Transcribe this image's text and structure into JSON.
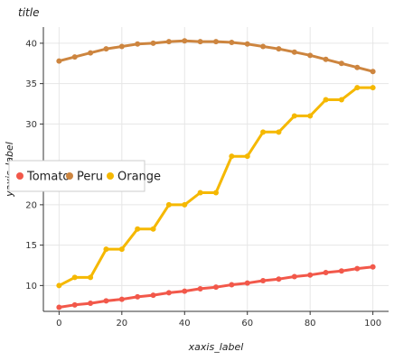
{
  "chart_data": {
    "type": "line",
    "title": "title",
    "xlabel": "xaxis_label",
    "ylabel": "yaxis_label",
    "xlim": [
      -5,
      105
    ],
    "ylim": [
      6.8,
      42.0
    ],
    "xticks": [
      0,
      20,
      40,
      60,
      80,
      100
    ],
    "yticks": [
      10,
      15,
      20,
      25,
      30,
      35,
      40
    ],
    "grid": true,
    "legend_position": "left",
    "markers": true,
    "series": [
      {
        "name": "Tomato",
        "color": "#f2584a",
        "x": [
          0,
          5,
          10,
          15,
          20,
          25,
          30,
          35,
          40,
          45,
          50,
          55,
          60,
          65,
          70,
          75,
          80,
          85,
          90,
          95,
          100
        ],
        "y": [
          7.3,
          7.6,
          7.8,
          8.1,
          8.3,
          8.6,
          8.8,
          9.1,
          9.3,
          9.6,
          9.8,
          10.1,
          10.3,
          10.6,
          10.8,
          11.1,
          11.3,
          11.6,
          11.8,
          12.1,
          12.3
        ]
      },
      {
        "name": "Peru",
        "color": "#cd853f",
        "x": [
          0,
          5,
          10,
          15,
          20,
          25,
          30,
          35,
          40,
          45,
          50,
          55,
          60,
          65,
          70,
          75,
          80,
          85,
          90,
          95,
          100
        ],
        "y": [
          37.8,
          38.3,
          38.8,
          39.3,
          39.6,
          39.9,
          40.0,
          40.2,
          40.3,
          40.2,
          40.2,
          40.1,
          39.9,
          39.6,
          39.3,
          38.9,
          38.5,
          38.0,
          37.5,
          37.0,
          36.5
        ]
      },
      {
        "name": "Orange",
        "color": "#f5b800",
        "x": [
          0,
          5,
          10,
          15,
          20,
          25,
          30,
          35,
          40,
          45,
          50,
          55,
          60,
          65,
          70,
          75,
          80,
          85,
          90,
          95,
          100
        ],
        "y": [
          10.0,
          11.0,
          11.0,
          14.5,
          14.5,
          17.0,
          17.0,
          20.0,
          20.0,
          21.5,
          21.5,
          26.0,
          26.0,
          29.0,
          29.0,
          31.0,
          31.0,
          33.0,
          33.0,
          34.5,
          34.5
        ]
      }
    ],
    "legend": [
      "Tomato",
      "Peru",
      "Orange"
    ]
  }
}
